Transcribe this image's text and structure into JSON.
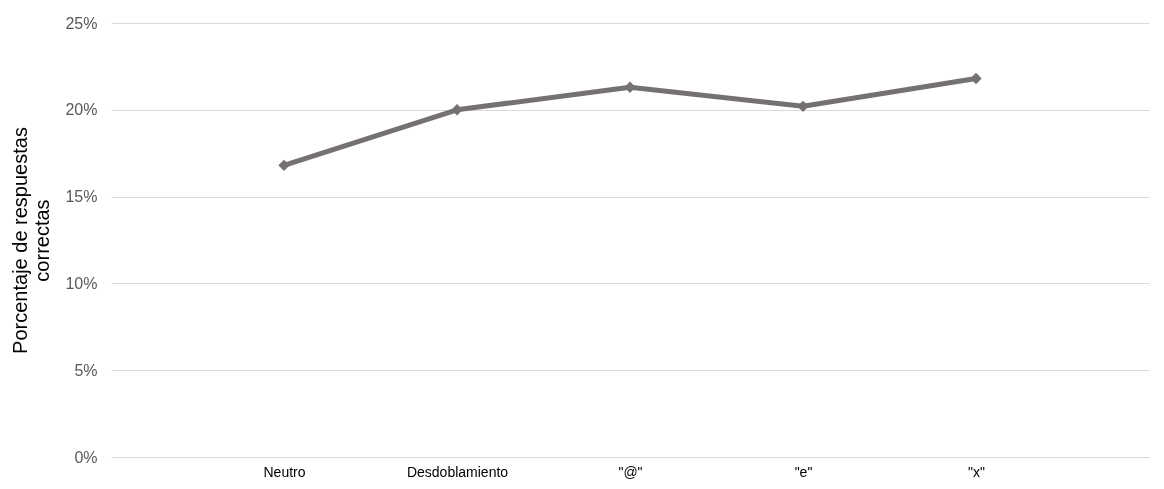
{
  "chart_data": {
    "type": "line",
    "ylabel": "Porcentaje de respuestas correctas",
    "categories": [
      "Neutro",
      "Desdoblamiento",
      "\"@\"",
      "\"e\"",
      "\"x\""
    ],
    "series": [
      {
        "color": "#767171",
        "values": [
          16.8,
          20.0,
          21.3,
          20.2,
          21.8
        ]
      }
    ],
    "ylim": [
      0,
      25
    ],
    "yticks": [
      {
        "value": 0,
        "label": "0%"
      },
      {
        "value": 5,
        "label": "5%"
      },
      {
        "value": 10,
        "label": "10%"
      },
      {
        "value": 15,
        "label": "15%"
      },
      {
        "value": 20,
        "label": "20%"
      },
      {
        "value": 25,
        "label": "25%"
      }
    ],
    "grid": "y",
    "marker": "diamond"
  }
}
